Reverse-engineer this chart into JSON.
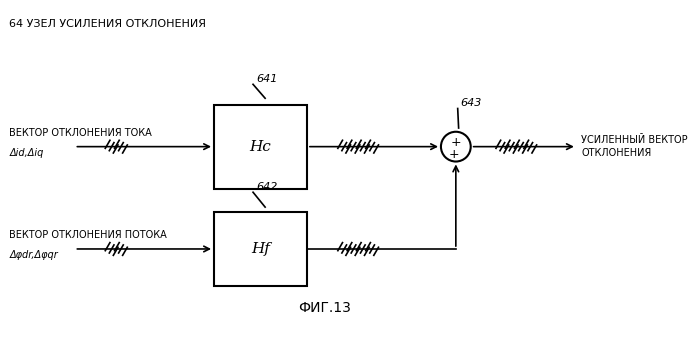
{
  "title": "ФИГ.13",
  "label_node": "64 УЗЕЛ УСИЛЕНИЯ ОТКЛОНЕНИЯ",
  "label_input1_top": "ВЕКТОР ОТКЛОНЕНИЯ ТОКА",
  "label_input1_bot": "Δid,Δiq",
  "label_input2_top": "ВЕКТОР ОТКЛОНЕНИЯ ПОТОКА",
  "label_input2_bot": "Δφdr,Δφqr",
  "label_output_top": "УСИЛЕННЫЙ ВЕКТОР",
  "label_output_bot": "ОТКЛОНЕНИЯ",
  "block1_label": "Hc",
  "block2_label": "Hf",
  "ref_block1": "641",
  "ref_block2": "642",
  "ref_sum": "643",
  "bg_color": "#ffffff",
  "line_color": "#000000",
  "font_size_small": 7,
  "font_size_ref": 8,
  "font_size_block": 11,
  "font_size_title": 10
}
